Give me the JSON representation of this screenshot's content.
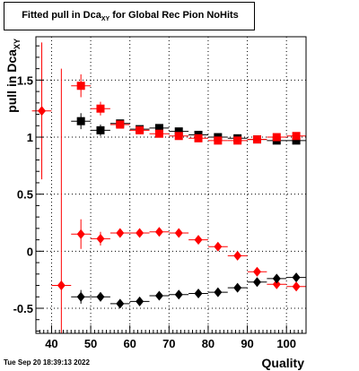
{
  "title": {
    "prefix": "Fitted pull in Dca",
    "subscript": "XY",
    "suffix": " for Global Rec Pion NoHits"
  },
  "timestamp": "Tue Sep 20 18:39:13 2022",
  "chart_data": {
    "type": "scatter",
    "xlabel": "Quality",
    "ylabel": "pull in Dca",
    "ylabel_subscript": "XY",
    "xlim": [
      36,
      105
    ],
    "ylim": [
      -0.72,
      1.88
    ],
    "xticks": [
      40,
      50,
      60,
      70,
      80,
      90,
      100
    ],
    "yticks": [
      -0.5,
      0,
      0.5,
      1,
      1.5
    ],
    "ytick_labels": [
      "-0.5",
      "0",
      "0.5",
      "1",
      "1.5"
    ],
    "grid": true,
    "series": [
      {
        "color": "#000000",
        "marker": "square",
        "points": [
          {
            "x": 47.5,
            "y": 1.14,
            "ex": 2.5,
            "ey": 0.07
          },
          {
            "x": 52.5,
            "y": 1.06,
            "ex": 2.5,
            "ey": 0.05
          },
          {
            "x": 57.5,
            "y": 1.12,
            "ex": 2.5,
            "ey": 0.03
          },
          {
            "x": 62.5,
            "y": 1.07,
            "ex": 2.5,
            "ey": 0.02
          },
          {
            "x": 67.5,
            "y": 1.08,
            "ex": 2.5,
            "ey": 0.02
          },
          {
            "x": 72.5,
            "y": 1.05,
            "ex": 2.5,
            "ey": 0.02
          },
          {
            "x": 77.5,
            "y": 1.02,
            "ex": 2.5,
            "ey": 0.01
          },
          {
            "x": 82.5,
            "y": 1.0,
            "ex": 2.5,
            "ey": 0.01
          },
          {
            "x": 87.5,
            "y": 0.99,
            "ex": 2.5,
            "ey": 0.01
          },
          {
            "x": 92.5,
            "y": 0.98,
            "ex": 2.5,
            "ey": 0.01
          },
          {
            "x": 97.5,
            "y": 0.97,
            "ex": 2.5,
            "ey": 0.01
          },
          {
            "x": 102.5,
            "y": 0.97,
            "ex": 2.5,
            "ey": 0.01
          }
        ]
      },
      {
        "color": "#ff0000",
        "marker": "square",
        "points": [
          {
            "x": 47.5,
            "y": 1.45,
            "ex": 2.5,
            "ey": 0.1
          },
          {
            "x": 52.5,
            "y": 1.25,
            "ex": 2.5,
            "ey": 0.06
          },
          {
            "x": 57.5,
            "y": 1.11,
            "ex": 2.5,
            "ey": 0.03
          },
          {
            "x": 62.5,
            "y": 1.06,
            "ex": 2.5,
            "ey": 0.02
          },
          {
            "x": 67.5,
            "y": 1.03,
            "ex": 2.5,
            "ey": 0.02
          },
          {
            "x": 72.5,
            "y": 1.01,
            "ex": 2.5,
            "ey": 0.02
          },
          {
            "x": 77.5,
            "y": 0.99,
            "ex": 2.5,
            "ey": 0.01
          },
          {
            "x": 82.5,
            "y": 0.97,
            "ex": 2.5,
            "ey": 0.01
          },
          {
            "x": 87.5,
            "y": 0.97,
            "ex": 2.5,
            "ey": 0.01
          },
          {
            "x": 92.5,
            "y": 0.98,
            "ex": 2.5,
            "ey": 0.01
          },
          {
            "x": 97.5,
            "y": 1.0,
            "ex": 2.5,
            "ey": 0.01
          },
          {
            "x": 102.5,
            "y": 1.01,
            "ex": 2.5,
            "ey": 0.01
          }
        ]
      },
      {
        "color": "#ff0000",
        "marker": "diamond",
        "points": [
          {
            "x": 37.5,
            "y": 1.23,
            "ex": 2.5,
            "ey": 0.6
          },
          {
            "x": 42.5,
            "y": -0.3,
            "ex": 2.5,
            "ey": 1.9
          },
          {
            "x": 47.5,
            "y": 0.15,
            "ex": 2.5,
            "ey": 0.13
          },
          {
            "x": 52.5,
            "y": 0.11,
            "ex": 2.5,
            "ey": 0.06
          },
          {
            "x": 57.5,
            "y": 0.16,
            "ex": 2.5,
            "ey": 0.03
          },
          {
            "x": 62.5,
            "y": 0.16,
            "ex": 2.5,
            "ey": 0.02
          },
          {
            "x": 67.5,
            "y": 0.17,
            "ex": 2.5,
            "ey": 0.02
          },
          {
            "x": 72.5,
            "y": 0.16,
            "ex": 2.5,
            "ey": 0.02
          },
          {
            "x": 77.5,
            "y": 0.1,
            "ex": 2.5,
            "ey": 0.01
          },
          {
            "x": 82.5,
            "y": 0.04,
            "ex": 2.5,
            "ey": 0.01
          },
          {
            "x": 87.5,
            "y": -0.04,
            "ex": 2.5,
            "ey": 0.01
          },
          {
            "x": 92.5,
            "y": -0.18,
            "ex": 2.5,
            "ey": 0.01
          },
          {
            "x": 97.5,
            "y": -0.29,
            "ex": 2.5,
            "ey": 0.01
          },
          {
            "x": 102.5,
            "y": -0.31,
            "ex": 2.5,
            "ey": 0.01
          }
        ]
      },
      {
        "color": "#000000",
        "marker": "diamond",
        "points": [
          {
            "x": 47.5,
            "y": -0.4,
            "ex": 2.5,
            "ey": 0.06
          },
          {
            "x": 52.5,
            "y": -0.4,
            "ex": 2.5,
            "ey": 0.04
          },
          {
            "x": 57.5,
            "y": -0.46,
            "ex": 2.5,
            "ey": 0.02
          },
          {
            "x": 62.5,
            "y": -0.44,
            "ex": 2.5,
            "ey": 0.02
          },
          {
            "x": 67.5,
            "y": -0.39,
            "ex": 2.5,
            "ey": 0.02
          },
          {
            "x": 72.5,
            "y": -0.38,
            "ex": 2.5,
            "ey": 0.01
          },
          {
            "x": 77.5,
            "y": -0.37,
            "ex": 2.5,
            "ey": 0.01
          },
          {
            "x": 82.5,
            "y": -0.36,
            "ex": 2.5,
            "ey": 0.01
          },
          {
            "x": 87.5,
            "y": -0.32,
            "ex": 2.5,
            "ey": 0.01
          },
          {
            "x": 92.5,
            "y": -0.27,
            "ex": 2.5,
            "ey": 0.01
          },
          {
            "x": 97.5,
            "y": -0.24,
            "ex": 2.5,
            "ey": 0.01
          },
          {
            "x": 102.5,
            "y": -0.23,
            "ex": 2.5,
            "ey": 0.01
          }
        ]
      }
    ]
  }
}
